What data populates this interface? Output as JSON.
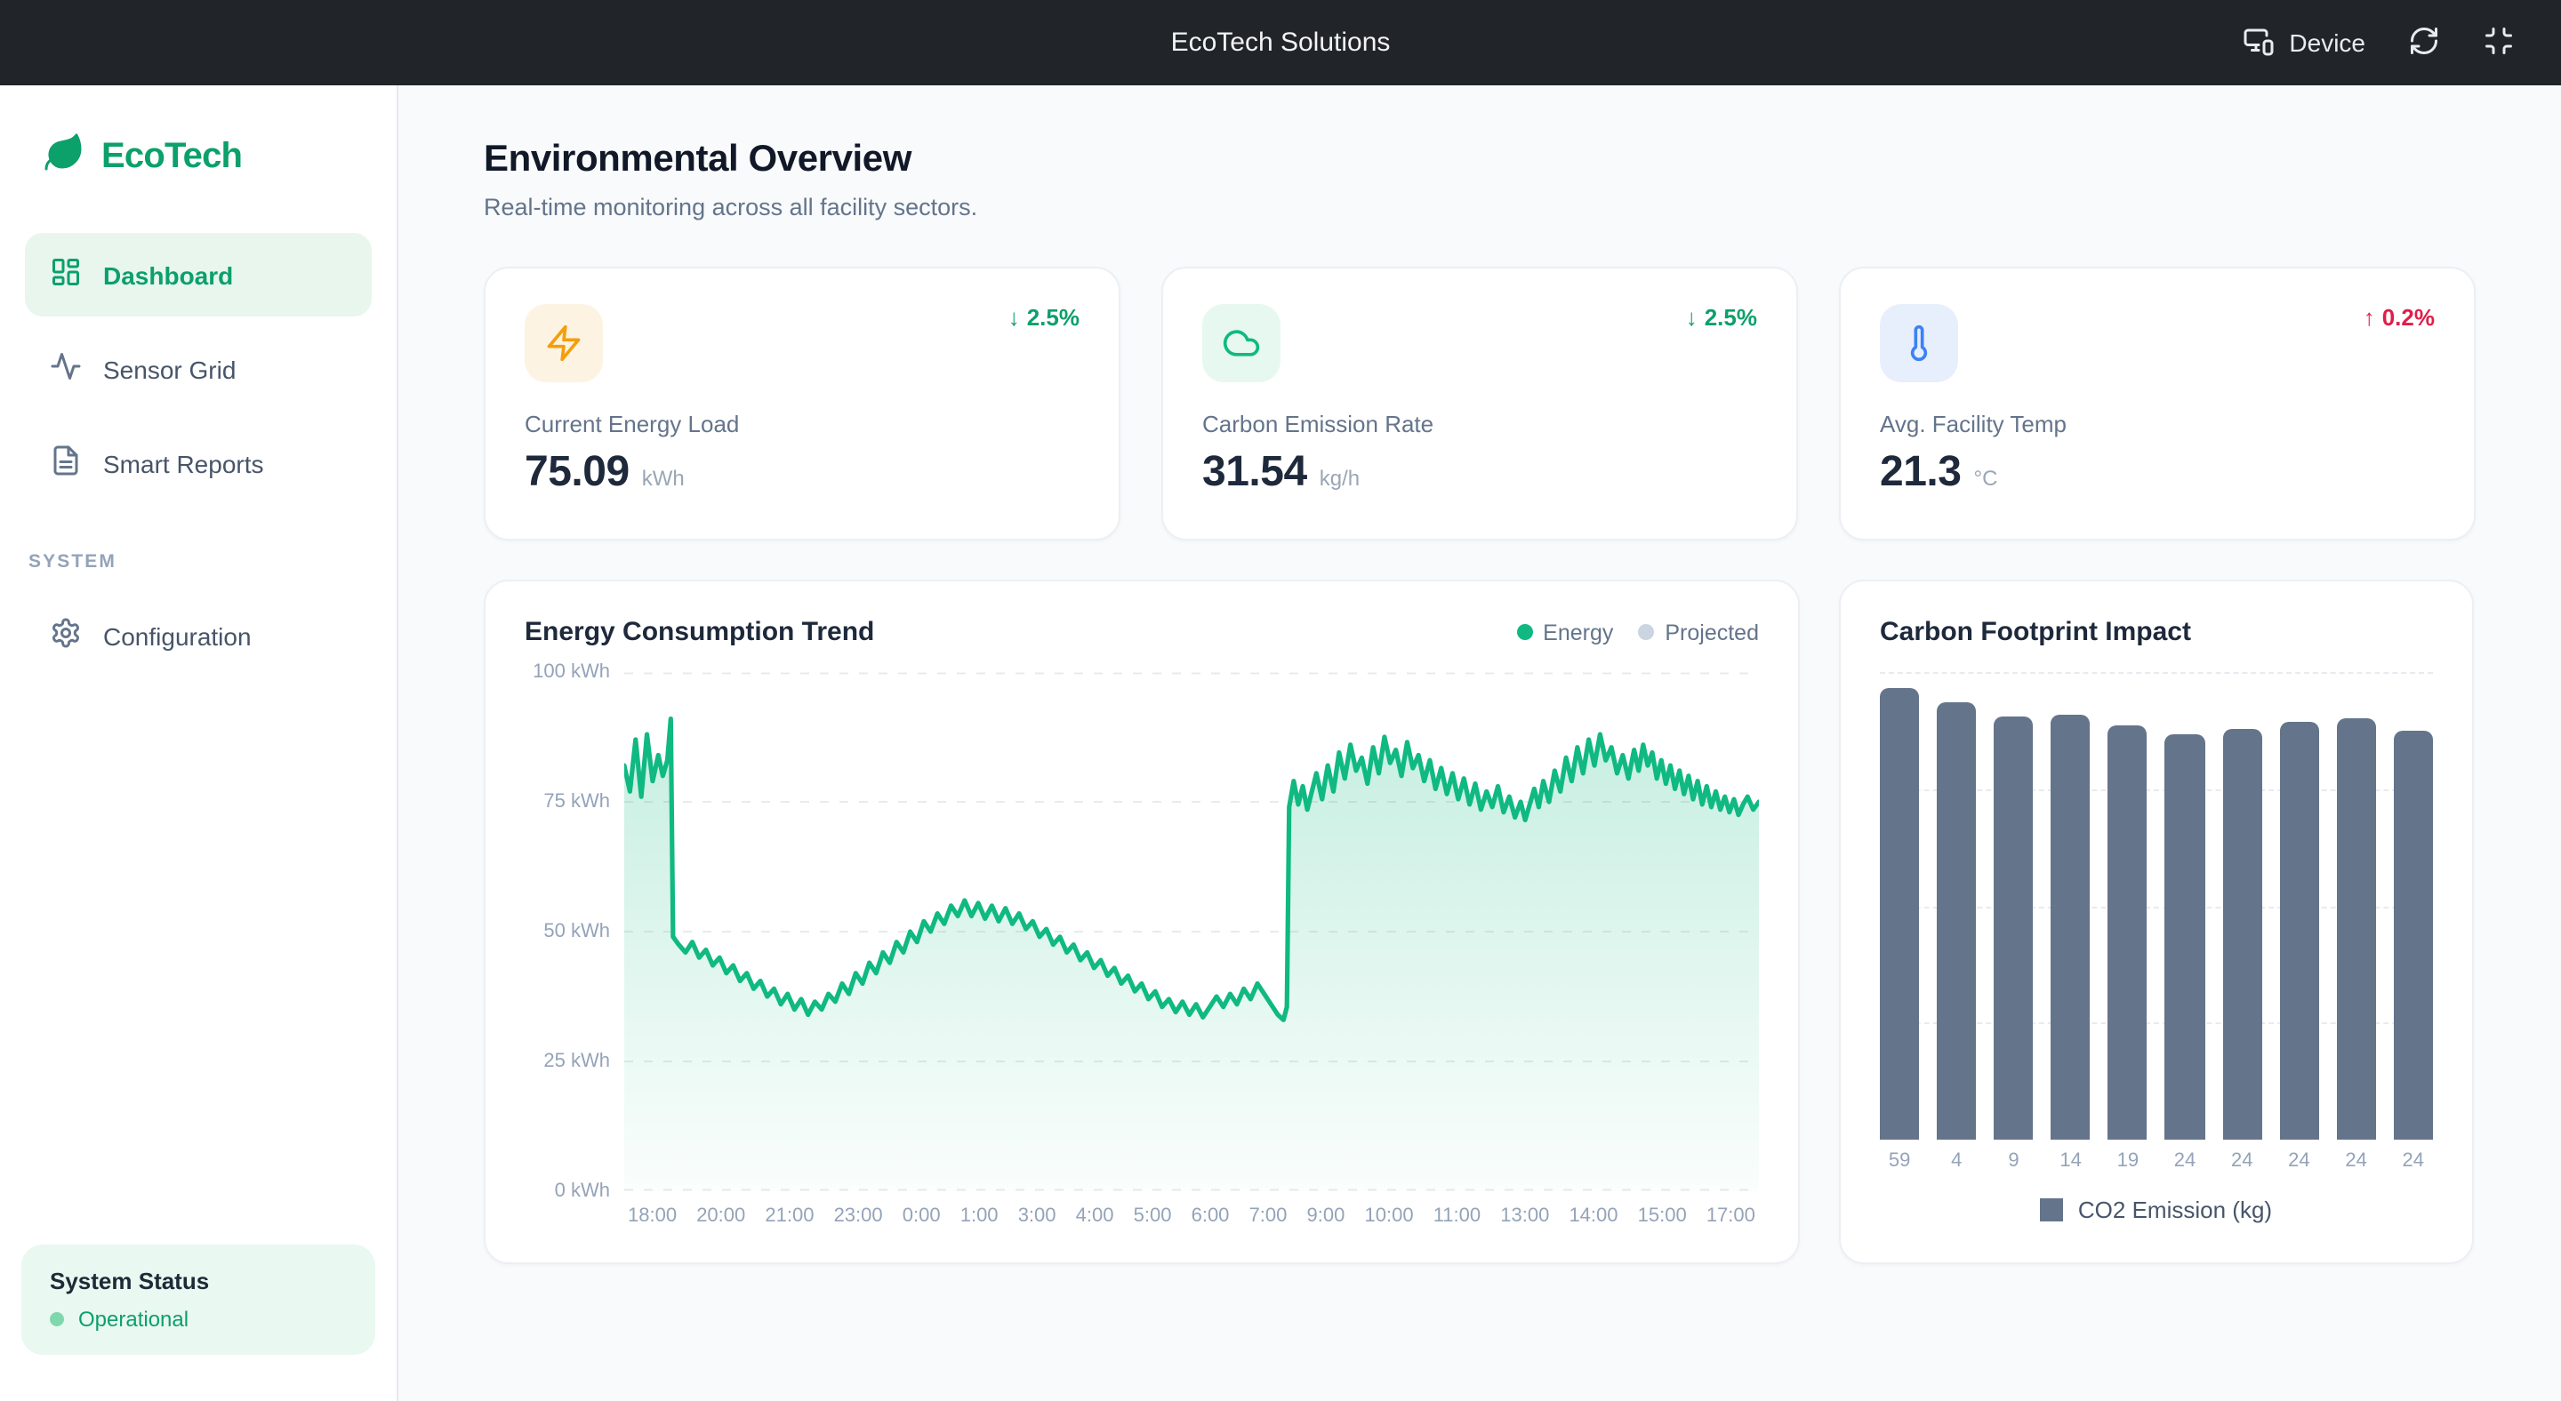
{
  "topbar": {
    "title": "EcoTech Solutions",
    "device_label": "Device"
  },
  "sidebar": {
    "brand": "EcoTech",
    "nav": [
      {
        "label": "Dashboard",
        "active": true
      },
      {
        "label": "Sensor Grid",
        "active": false
      },
      {
        "label": "Smart Reports",
        "active": false
      }
    ],
    "section_label": "SYSTEM",
    "nav_system": [
      {
        "label": "Configuration"
      }
    ],
    "status": {
      "title": "System Status",
      "state": "Operational",
      "dot_color": "#7fd8ac",
      "text_color": "#0ca06b"
    }
  },
  "header": {
    "title": "Environmental Overview",
    "subtitle": "Real-time monitoring across all facility sectors."
  },
  "stats": [
    {
      "label": "Current Energy Load",
      "value": "75.09",
      "unit": "kWh",
      "delta": "2.5%",
      "direction": "down",
      "delta_color": "#0ca06b",
      "icon": "zap-icon",
      "icon_color": "#f59e0b",
      "icon_bg": "#fdf3e2"
    },
    {
      "label": "Carbon Emission Rate",
      "value": "31.54",
      "unit": "kg/h",
      "delta": "2.5%",
      "direction": "down",
      "delta_color": "#0ca06b",
      "icon": "cloud-icon",
      "icon_color": "#10b981",
      "icon_bg": "#e7f8f0"
    },
    {
      "label": "Avg. Facility Temp",
      "value": "21.3",
      "unit": "°C",
      "delta": "0.2%",
      "direction": "up",
      "delta_color": "#e11d48",
      "icon": "thermometer-icon",
      "icon_color": "#3b82f6",
      "icon_bg": "#e8effc"
    }
  ],
  "chart_data": [
    {
      "type": "area",
      "title": "Energy Consumption Trend",
      "legend": [
        {
          "label": "Energy",
          "color": "#10b981"
        },
        {
          "label": "Projected",
          "color": "#cbd5e1"
        }
      ],
      "ylabel_ticks": [
        "100 kWh",
        "75 kWh",
        "50 kWh",
        "25 kWh",
        "0 kWh"
      ],
      "ylim": [
        0,
        100
      ],
      "grid": "dashed-horizontal",
      "x_ticks": [
        "18:00",
        "20:00",
        "21:00",
        "23:00",
        "0:00",
        "1:00",
        "3:00",
        "4:00",
        "5:00",
        "6:00",
        "7:00",
        "9:00",
        "10:00",
        "11:00",
        "13:00",
        "14:00",
        "15:00",
        "17:00"
      ],
      "series": [
        {
          "name": "Energy",
          "color": "#10b981",
          "points": [
            [
              0,
              82
            ],
            [
              0.5,
              77
            ],
            [
              1,
              87
            ],
            [
              1.5,
              76
            ],
            [
              2,
              88
            ],
            [
              2.5,
              79
            ],
            [
              3,
              84
            ],
            [
              3.4,
              80
            ],
            [
              3.8,
              83
            ],
            [
              4.1,
              91
            ],
            [
              4.3,
              49
            ],
            [
              4.8,
              47.5
            ],
            [
              5.4,
              46
            ],
            [
              6,
              48
            ],
            [
              6.6,
              45
            ],
            [
              7.2,
              46.5
            ],
            [
              7.8,
              43.5
            ],
            [
              8.4,
              45
            ],
            [
              9,
              42
            ],
            [
              9.6,
              43.5
            ],
            [
              10.2,
              40.5
            ],
            [
              10.8,
              42
            ],
            [
              11.4,
              39
            ],
            [
              12,
              40.5
            ],
            [
              12.6,
              37.5
            ],
            [
              13.2,
              39
            ],
            [
              13.8,
              36
            ],
            [
              14.4,
              38
            ],
            [
              15,
              35
            ],
            [
              15.6,
              37
            ],
            [
              16.2,
              34
            ],
            [
              16.8,
              36.5
            ],
            [
              17.4,
              35
            ],
            [
              18,
              38
            ],
            [
              18.6,
              36.5
            ],
            [
              19.2,
              40
            ],
            [
              19.8,
              38
            ],
            [
              20.4,
              42
            ],
            [
              21,
              40
            ],
            [
              21.6,
              44
            ],
            [
              22.2,
              42
            ],
            [
              22.8,
              46
            ],
            [
              23.4,
              44
            ],
            [
              24,
              48
            ],
            [
              24.6,
              46
            ],
            [
              25.2,
              50
            ],
            [
              25.8,
              48
            ],
            [
              26.4,
              52
            ],
            [
              27,
              50
            ],
            [
              27.6,
              53.5
            ],
            [
              28.2,
              51.5
            ],
            [
              28.8,
              55
            ],
            [
              29.4,
              53
            ],
            [
              30,
              56
            ],
            [
              30.6,
              53
            ],
            [
              31.2,
              55.5
            ],
            [
              31.8,
              52.5
            ],
            [
              32.4,
              55
            ],
            [
              33,
              52
            ],
            [
              33.6,
              54.5
            ],
            [
              34.2,
              51.5
            ],
            [
              34.8,
              53.5
            ],
            [
              35.4,
              50.5
            ],
            [
              36,
              52
            ],
            [
              36.6,
              49
            ],
            [
              37.2,
              50.5
            ],
            [
              37.8,
              47.5
            ],
            [
              38.4,
              49
            ],
            [
              39,
              46
            ],
            [
              39.6,
              47.5
            ],
            [
              40.2,
              44.5
            ],
            [
              40.8,
              46
            ],
            [
              41.4,
              43
            ],
            [
              42,
              44.5
            ],
            [
              42.6,
              41.5
            ],
            [
              43.2,
              43
            ],
            [
              43.8,
              40
            ],
            [
              44.4,
              41.5
            ],
            [
              45,
              38.5
            ],
            [
              45.6,
              40
            ],
            [
              46.2,
              37
            ],
            [
              46.8,
              38.5
            ],
            [
              47.4,
              35.5
            ],
            [
              48,
              37
            ],
            [
              48.6,
              34.5
            ],
            [
              49.2,
              36.5
            ],
            [
              49.8,
              34
            ],
            [
              50.4,
              36
            ],
            [
              51,
              33.5
            ],
            [
              51.6,
              35.5
            ],
            [
              52.2,
              37.5
            ],
            [
              52.8,
              35.5
            ],
            [
              53.4,
              38
            ],
            [
              54,
              36
            ],
            [
              54.6,
              39
            ],
            [
              55.2,
              37
            ],
            [
              55.8,
              40
            ],
            [
              56.4,
              38
            ],
            [
              57,
              36
            ],
            [
              57.6,
              34
            ],
            [
              58.1,
              33
            ],
            [
              58.4,
              35.5
            ],
            [
              58.6,
              74
            ],
            [
              59,
              79
            ],
            [
              59.4,
              74.5
            ],
            [
              59.8,
              78
            ],
            [
              60.2,
              73.5
            ],
            [
              60.6,
              77
            ],
            [
              61,
              80.5
            ],
            [
              61.5,
              75.5
            ],
            [
              62,
              82
            ],
            [
              62.5,
              77
            ],
            [
              63,
              84.5
            ],
            [
              63.5,
              79.5
            ],
            [
              64,
              86
            ],
            [
              64.5,
              81
            ],
            [
              65,
              83.5
            ],
            [
              65.5,
              78.5
            ],
            [
              66,
              85.5
            ],
            [
              66.5,
              80.5
            ],
            [
              67,
              87.5
            ],
            [
              67.5,
              82.5
            ],
            [
              68,
              85
            ],
            [
              68.5,
              80
            ],
            [
              69,
              86.5
            ],
            [
              69.5,
              81.5
            ],
            [
              70,
              84
            ],
            [
              70.5,
              79
            ],
            [
              71,
              83
            ],
            [
              71.5,
              77.5
            ],
            [
              72,
              81.5
            ],
            [
              72.5,
              76.5
            ],
            [
              73,
              80.5
            ],
            [
              73.5,
              75.5
            ],
            [
              74,
              79.5
            ],
            [
              74.5,
              74.5
            ],
            [
              75,
              78.5
            ],
            [
              75.5,
              73.5
            ],
            [
              76,
              77
            ],
            [
              76.5,
              74
            ],
            [
              77,
              78
            ],
            [
              77.5,
              73
            ],
            [
              78,
              76
            ],
            [
              78.5,
              72
            ],
            [
              79,
              75
            ],
            [
              79.4,
              71.5
            ],
            [
              79.8,
              74.5
            ],
            [
              80.2,
              77.5
            ],
            [
              80.6,
              74
            ],
            [
              81,
              79
            ],
            [
              81.5,
              75
            ],
            [
              82,
              81
            ],
            [
              82.5,
              77
            ],
            [
              83,
              83.5
            ],
            [
              83.5,
              79
            ],
            [
              84,
              85.5
            ],
            [
              84.5,
              80.5
            ],
            [
              85,
              87
            ],
            [
              85.5,
              82
            ],
            [
              86,
              88
            ],
            [
              86.5,
              83
            ],
            [
              87,
              85.5
            ],
            [
              87.5,
              80.5
            ],
            [
              88,
              84
            ],
            [
              88.5,
              79.5
            ],
            [
              89,
              85
            ],
            [
              89.4,
              81
            ],
            [
              89.8,
              86
            ],
            [
              90.2,
              82
            ],
            [
              90.6,
              84.5
            ],
            [
              91,
              79.5
            ],
            [
              91.4,
              83
            ],
            [
              91.8,
              78.5
            ],
            [
              92.2,
              82
            ],
            [
              92.6,
              77.5
            ],
            [
              93,
              81
            ],
            [
              93.4,
              76.5
            ],
            [
              93.8,
              80
            ],
            [
              94.2,
              75.5
            ],
            [
              94.6,
              79
            ],
            [
              95,
              74.5
            ],
            [
              95.4,
              78
            ],
            [
              95.8,
              74
            ],
            [
              96.2,
              77
            ],
            [
              96.6,
              73.5
            ],
            [
              97,
              76
            ],
            [
              97.4,
              73
            ],
            [
              97.8,
              75.5
            ],
            [
              98.2,
              72.5
            ],
            [
              98.6,
              74.5
            ],
            [
              99,
              76
            ],
            [
              99.5,
              73.5
            ],
            [
              100,
              75
            ]
          ]
        }
      ]
    },
    {
      "type": "bar",
      "title": "Carbon Footprint Impact",
      "categories": [
        "59",
        "4",
        "9",
        "14",
        "19",
        "24",
        "24",
        "24",
        "24",
        "24"
      ],
      "bar_heights_pct": [
        96.5,
        93.7,
        90.4,
        90.8,
        88.6,
        86.7,
        87.8,
        89.2,
        90.2,
        87.6
      ],
      "bar_color": "#64748b",
      "legend_label": "CO2 Emission (kg)"
    }
  ]
}
